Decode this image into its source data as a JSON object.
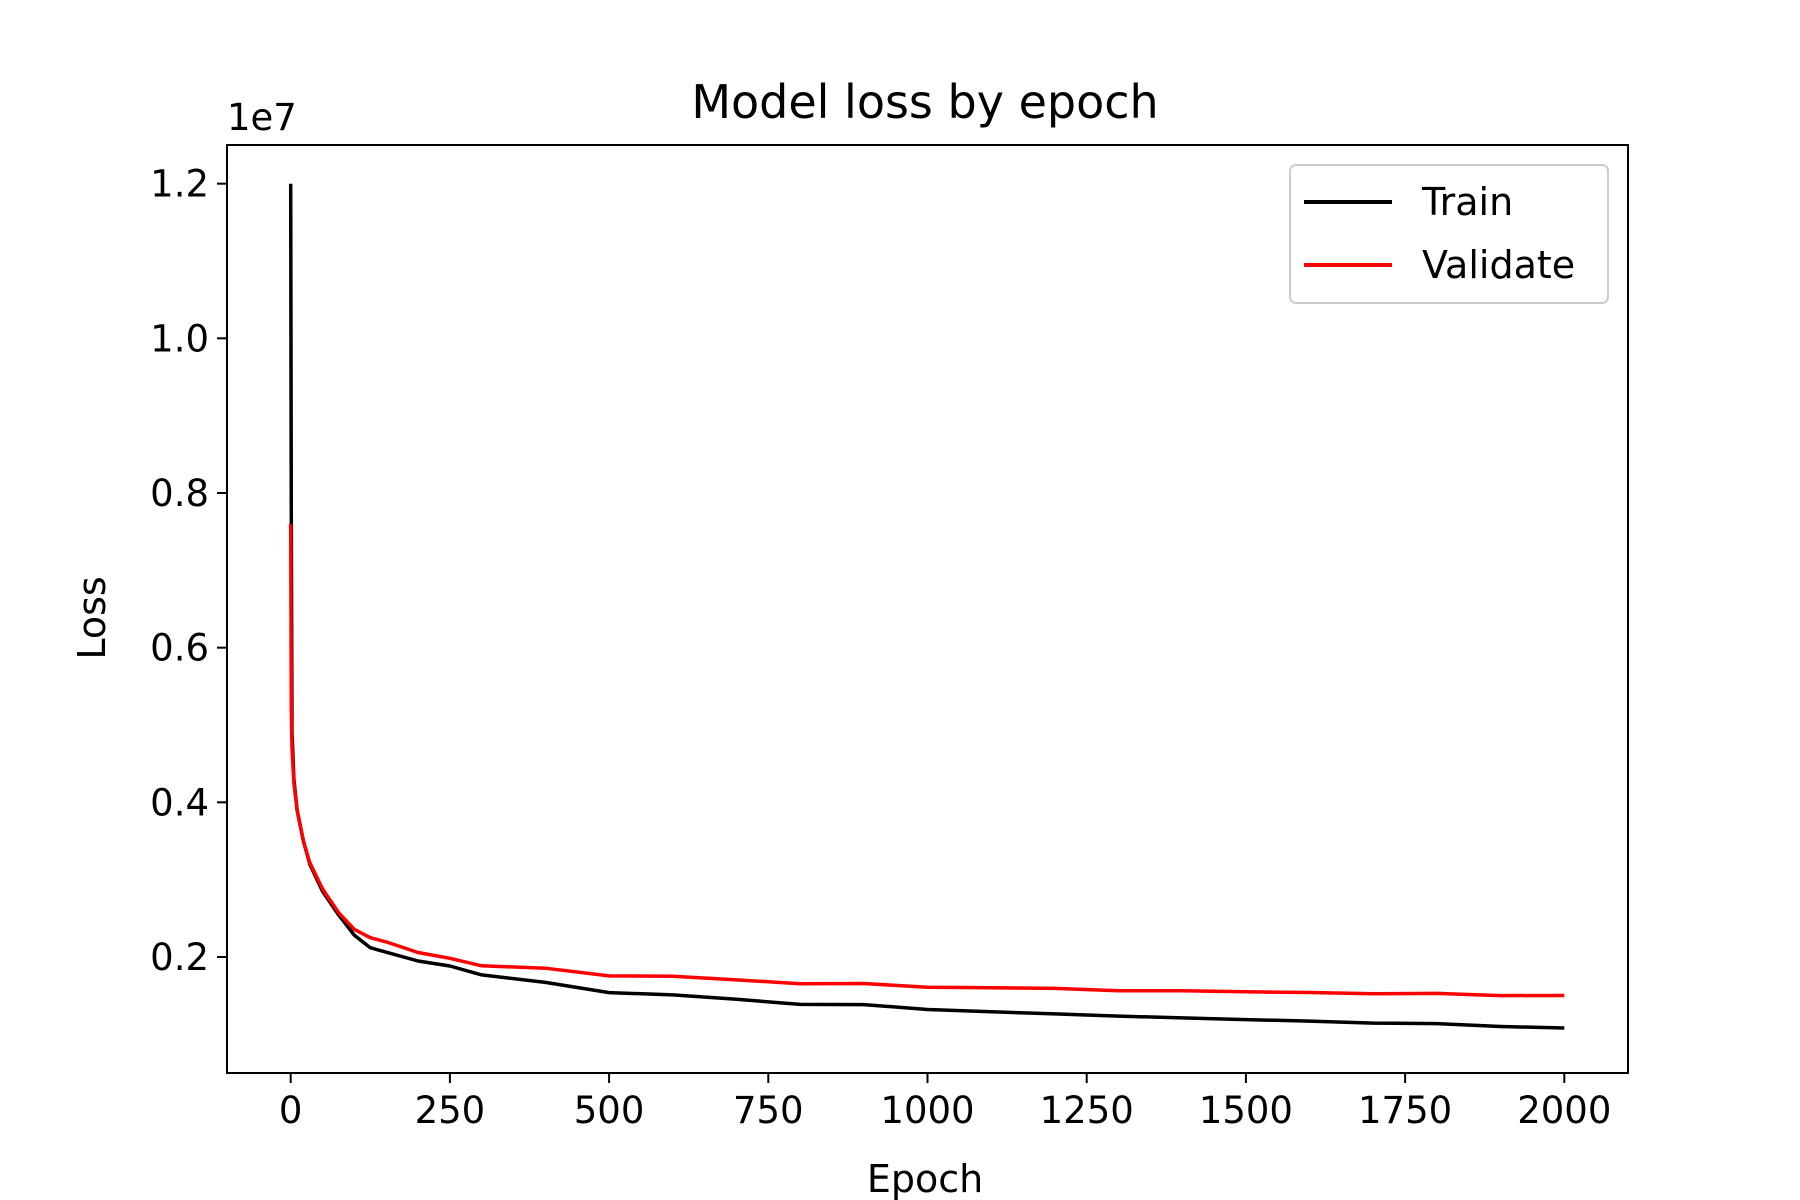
{
  "chart_data": {
    "type": "line",
    "title": "Model loss by epoch",
    "xlabel": "Epoch",
    "ylabel": "Loss",
    "y_offset_text": "1e7",
    "y_unit_scale": 10000000,
    "xlim": [
      -100,
      2100
    ],
    "ylim": [
      500000,
      12500000
    ],
    "x_ticks": [
      0,
      250,
      500,
      750,
      1000,
      1250,
      1500,
      1750,
      2000
    ],
    "x_tick_labels": [
      "0",
      "250",
      "500",
      "750",
      "1000",
      "1250",
      "1500",
      "1750",
      "2000"
    ],
    "y_ticks": [
      2000000,
      4000000,
      6000000,
      8000000,
      10000000,
      12000000
    ],
    "y_tick_labels": [
      "0.2",
      "0.4",
      "0.6",
      "0.8",
      "1.0",
      "1.2"
    ],
    "grid": false,
    "legend_position": "top-right",
    "series": [
      {
        "name": "Train",
        "color": "#000000",
        "x": [
          0,
          1,
          2,
          5,
          10,
          20,
          30,
          50,
          75,
          100,
          125,
          150,
          200,
          250,
          300,
          400,
          500,
          600,
          700,
          800,
          900,
          1000,
          1100,
          1200,
          1300,
          1400,
          1500,
          1600,
          1700,
          1800,
          1900,
          2000
        ],
        "y": [
          12000000,
          7600000,
          4900000,
          4300000,
          3900000,
          3500000,
          3200000,
          2850000,
          2550000,
          2300000,
          2120000,
          2050000,
          1950000,
          1880000,
          1780000,
          1650000,
          1560000,
          1500000,
          1450000,
          1400000,
          1370000,
          1330000,
          1290000,
          1260000,
          1240000,
          1210000,
          1190000,
          1170000,
          1150000,
          1130000,
          1110000,
          1080000
        ]
      },
      {
        "name": "Validate",
        "color": "#ff0000",
        "x": [
          0,
          1,
          2,
          5,
          10,
          20,
          30,
          50,
          75,
          100,
          125,
          150,
          200,
          250,
          300,
          400,
          500,
          600,
          700,
          800,
          900,
          1000,
          1100,
          1200,
          1300,
          1400,
          1500,
          1600,
          1700,
          1800,
          1900,
          2000
        ],
        "y": [
          7600000,
          5200000,
          4700000,
          4250000,
          3900000,
          3500000,
          3220000,
          2880000,
          2580000,
          2380000,
          2250000,
          2180000,
          2060000,
          1980000,
          1900000,
          1830000,
          1780000,
          1740000,
          1700000,
          1670000,
          1640000,
          1620000,
          1600000,
          1590000,
          1570000,
          1560000,
          1550000,
          1540000,
          1530000,
          1520000,
          1510000,
          1500000
        ]
      }
    ]
  }
}
